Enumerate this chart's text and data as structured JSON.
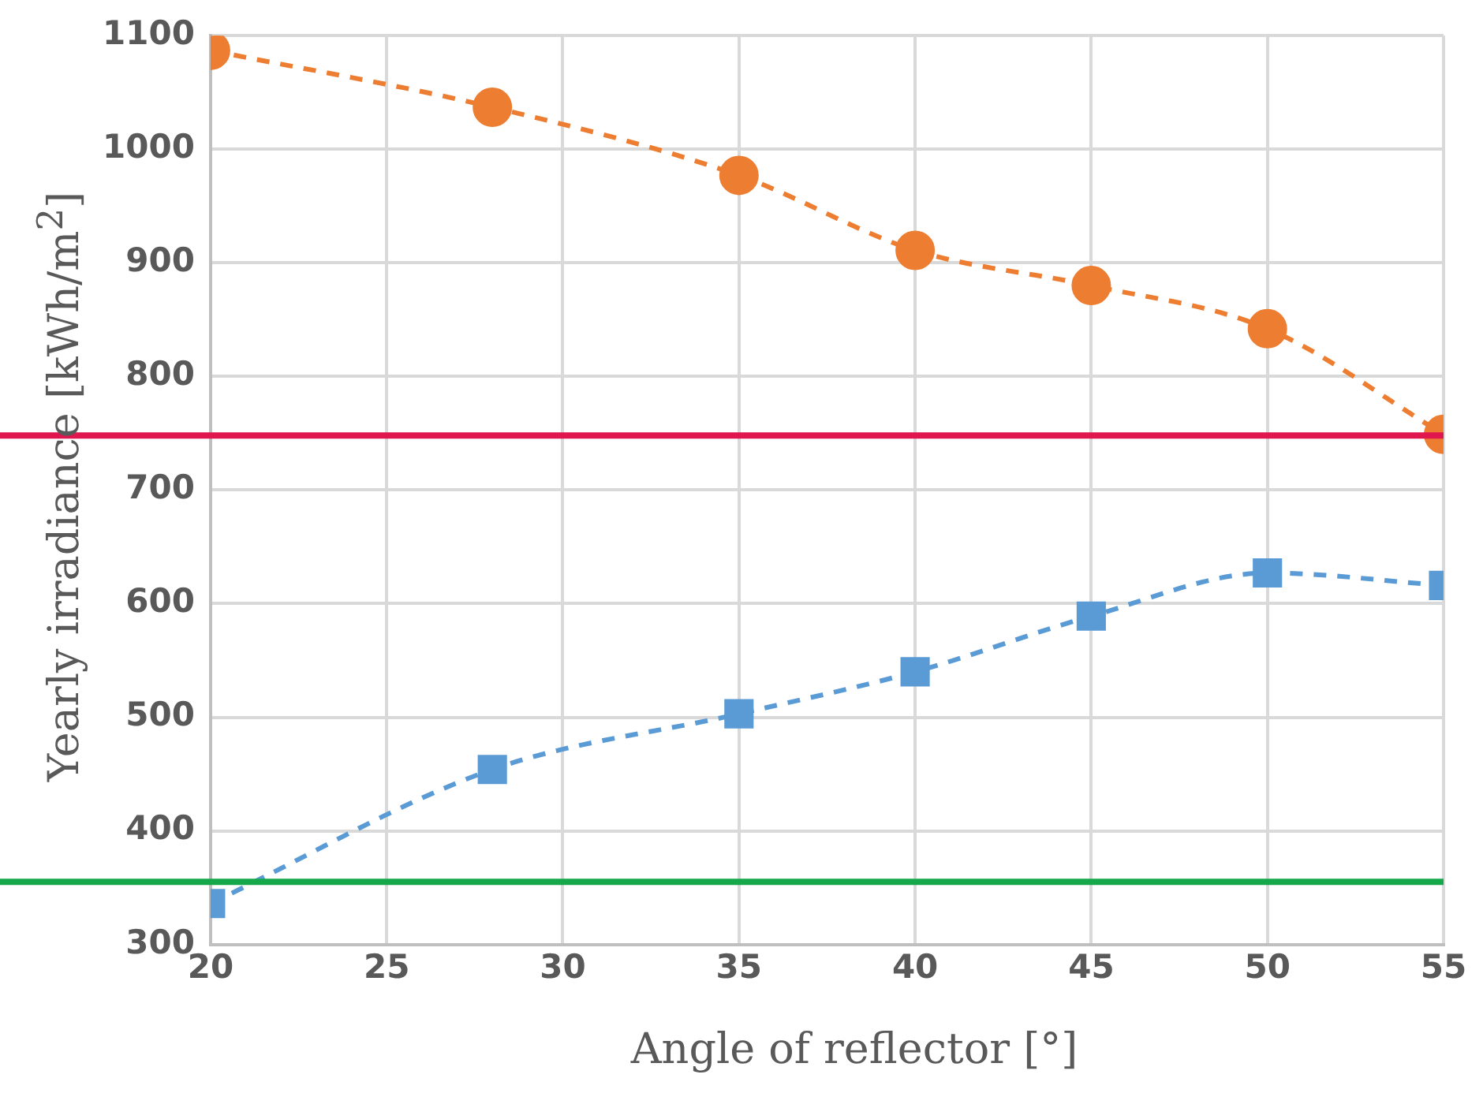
{
  "chart_data": {
    "type": "line",
    "xlabel": "Angle of reflector [°]",
    "ylabel": "Yearly irradiance [kWh/m$^{2}$]",
    "x": [
      20,
      28,
      35,
      40,
      45,
      50,
      55
    ],
    "series": [
      {
        "color": "#ed7d31",
        "marker": "circle",
        "values": [
          1087,
          1037,
          977,
          911,
          880,
          842,
          749
        ]
      },
      {
        "color": "#5b9bd5",
        "marker": "square",
        "values": [
          336,
          454,
          503,
          540,
          589,
          627,
          616
        ]
      }
    ],
    "xlim": [
      20,
      55
    ],
    "xticks": [
      20,
      25,
      30,
      35,
      40,
      45,
      50,
      55
    ],
    "ylim": [
      300,
      1100
    ],
    "yticks": [
      300,
      400,
      500,
      600,
      700,
      800,
      900,
      1000,
      1100
    ],
    "ref_lines": [
      {
        "axis": "y",
        "value": 748,
        "color": "#e0174f"
      },
      {
        "axis": "y",
        "value": 355,
        "color": "#14a84a"
      }
    ],
    "grid": true,
    "legend": false,
    "line_style": "dashed"
  }
}
